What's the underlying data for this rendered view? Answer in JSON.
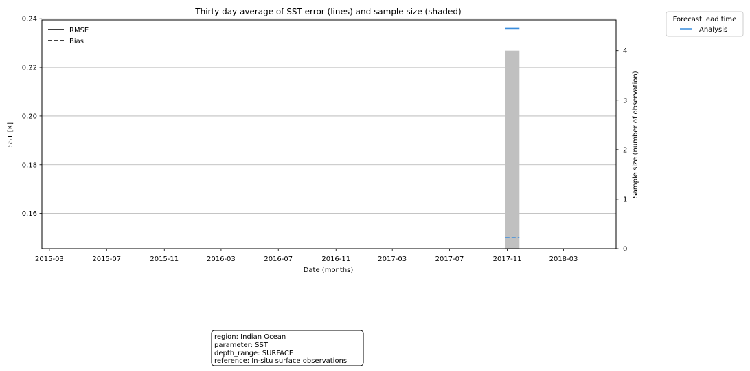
{
  "chart_data": {
    "type": "line",
    "title": "Thirty day average of SST error (lines) and sample size (shaded)",
    "xlabel": "Date (months)",
    "ylabel": "SST [K]",
    "y2label": "Sample size (number of observation)",
    "xlim": [
      "2015-02-13",
      "2018-06-21"
    ],
    "ylim": [
      0.1455,
      0.2395
    ],
    "y2lim": [
      0,
      4.62
    ],
    "x_ticks": [
      "2015-03",
      "2015-07",
      "2015-11",
      "2016-03",
      "2016-07",
      "2016-11",
      "2017-03",
      "2017-07",
      "2017-11",
      "2018-03"
    ],
    "y_ticks": [
      "0.16",
      "0.18",
      "0.20",
      "0.22",
      "0.24"
    ],
    "y2_ticks": [
      "0",
      "1",
      "2",
      "3",
      "4"
    ],
    "grid": "horizontal",
    "style_legend": {
      "placement": "upper-left",
      "entries": [
        {
          "label": "RMSE",
          "dash": "solid"
        },
        {
          "label": "Bias",
          "dash": "dashed"
        }
      ]
    },
    "series_legend": {
      "placement": "outside-top-right",
      "title": "Forecast lead time",
      "entries": [
        {
          "label": "Analysis",
          "color": "#3a8ddd"
        }
      ]
    },
    "bars": [
      {
        "x_start": "2017-10-28",
        "x_end": "2017-11-27",
        "value": 4,
        "color": "#c0c0c0"
      }
    ],
    "series": [
      {
        "name": "Analysis",
        "color": "#3a8ddd",
        "rmse": [
          {
            "x": "2017-10-28",
            "y": 0.236
          },
          {
            "x": "2017-11-27",
            "y": 0.236
          }
        ],
        "bias": [
          {
            "x": "2017-10-28",
            "y": 0.15
          },
          {
            "x": "2017-11-27",
            "y": 0.15
          }
        ]
      }
    ]
  },
  "info_box": {
    "lines": [
      "region: Indian Ocean",
      "parameter: SST",
      "depth_range: SURFACE",
      "reference: In-situ surface observations"
    ]
  }
}
